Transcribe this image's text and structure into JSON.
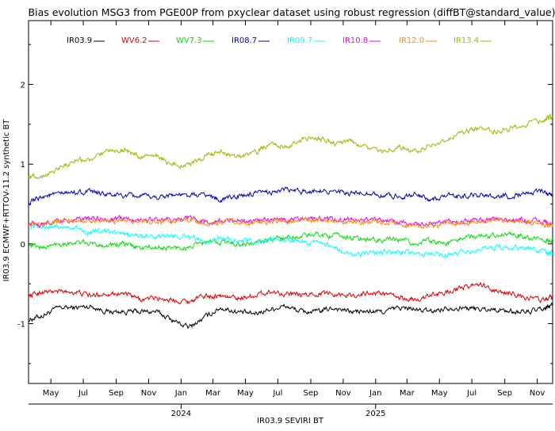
{
  "chart_data": {
    "type": "line",
    "title": "Bias evolution MSG3 from PGE00P from pxyclear dataset using robust regression (diffBT@standard_value)",
    "xlabel": "IR03.9 SEVIRI BT",
    "ylabel": "IR03.9 ECMWF+RTTOV-11.2 synthetic BT",
    "xlim": [
      "2023-03-20",
      "2025-11-30"
    ],
    "ylim": [
      -1.75,
      2.8
    ],
    "yticks": [
      -1,
      0,
      1,
      2
    ],
    "ytick_labels": [
      "-1",
      "0",
      "1",
      "2"
    ],
    "month_ticks": [
      {
        "date": "2023-05-01",
        "label": "May"
      },
      {
        "date": "2023-07-01",
        "label": "Jul"
      },
      {
        "date": "2023-09-01",
        "label": "Sep"
      },
      {
        "date": "2023-11-01",
        "label": "Nov"
      },
      {
        "date": "2024-01-01",
        "label": "Jan"
      },
      {
        "date": "2024-03-01",
        "label": "Mar"
      },
      {
        "date": "2024-05-01",
        "label": "May"
      },
      {
        "date": "2024-07-01",
        "label": "Jul"
      },
      {
        "date": "2024-09-01",
        "label": "Sep"
      },
      {
        "date": "2024-11-01",
        "label": "Nov"
      },
      {
        "date": "2025-01-01",
        "label": "Jan"
      },
      {
        "date": "2025-03-01",
        "label": "Mar"
      },
      {
        "date": "2025-05-01",
        "label": "May"
      },
      {
        "date": "2025-07-01",
        "label": "Jul"
      },
      {
        "date": "2025-09-01",
        "label": "Sep"
      },
      {
        "date": "2025-11-01",
        "label": "Nov"
      }
    ],
    "year_ticks": [
      {
        "date": "2024-01-01",
        "label": "2024"
      },
      {
        "date": "2025-01-01",
        "label": "2025"
      }
    ],
    "grid": false,
    "legend": "top-left",
    "x": [
      "2023-03-20",
      "2023-04-15",
      "2023-05-15",
      "2023-06-15",
      "2023-07-15",
      "2023-08-15",
      "2023-09-15",
      "2023-10-15",
      "2023-11-15",
      "2023-12-15",
      "2024-01-15",
      "2024-02-15",
      "2024-03-15",
      "2024-04-15",
      "2024-05-15",
      "2024-06-15",
      "2024-07-15",
      "2024-08-15",
      "2024-09-15",
      "2024-10-15",
      "2024-11-15",
      "2024-12-15",
      "2025-01-15",
      "2025-02-15",
      "2025-03-15",
      "2025-04-15",
      "2025-05-15",
      "2025-06-15",
      "2025-07-15",
      "2025-08-15",
      "2025-09-15",
      "2025-10-15",
      "2025-11-15",
      "2025-11-30"
    ],
    "series": [
      {
        "name": "IR03.9",
        "color": "#000000",
        "values": [
          -0.95,
          -0.9,
          -0.8,
          -0.8,
          -0.78,
          -0.85,
          -0.85,
          -0.85,
          -0.85,
          -0.95,
          -1.05,
          -0.92,
          -0.8,
          -0.85,
          -0.88,
          -0.82,
          -0.78,
          -0.85,
          -0.85,
          -0.8,
          -0.85,
          -0.85,
          -0.85,
          -0.8,
          -0.82,
          -0.85,
          -0.8,
          -0.8,
          -0.82,
          -0.82,
          -0.85,
          -0.85,
          -0.82,
          -0.75
        ]
      },
      {
        "name": "WV6.2",
        "color": "#dd0000",
        "values": [
          -0.65,
          -0.6,
          -0.6,
          -0.6,
          -0.65,
          -0.62,
          -0.62,
          -0.7,
          -0.68,
          -0.7,
          -0.72,
          -0.65,
          -0.65,
          -0.68,
          -0.65,
          -0.6,
          -0.62,
          -0.65,
          -0.62,
          -0.62,
          -0.65,
          -0.62,
          -0.62,
          -0.68,
          -0.7,
          -0.65,
          -0.6,
          -0.55,
          -0.5,
          -0.6,
          -0.62,
          -0.68,
          -0.7,
          -0.68
        ]
      },
      {
        "name": "WV7.3",
        "color": "#00dd00",
        "values": [
          0.0,
          -0.05,
          0.0,
          0.02,
          0.0,
          -0.02,
          0.0,
          -0.05,
          -0.05,
          -0.05,
          -0.05,
          0.02,
          0.03,
          0.0,
          0.0,
          0.05,
          0.08,
          0.1,
          0.12,
          0.1,
          0.08,
          0.05,
          0.05,
          0.05,
          0.0,
          0.05,
          0.0,
          0.08,
          0.1,
          0.12,
          0.12,
          0.08,
          0.05,
          0.05
        ]
      },
      {
        "name": "IR08.7",
        "color": "#0000bb",
        "values": [
          0.5,
          0.6,
          0.62,
          0.65,
          0.65,
          0.62,
          0.6,
          0.6,
          0.58,
          0.62,
          0.6,
          0.62,
          0.55,
          0.6,
          0.62,
          0.65,
          0.68,
          0.65,
          0.68,
          0.65,
          0.62,
          0.65,
          0.6,
          0.6,
          0.62,
          0.55,
          0.6,
          0.6,
          0.62,
          0.6,
          0.6,
          0.65,
          0.65,
          0.62
        ]
      },
      {
        "name": "IR09.7",
        "color": "#00ffff",
        "values": [
          0.2,
          0.2,
          0.22,
          0.2,
          0.15,
          0.15,
          0.12,
          0.1,
          0.08,
          0.1,
          0.1,
          0.02,
          0.08,
          0.05,
          0.02,
          0.05,
          0.05,
          0.02,
          0.0,
          -0.05,
          -0.15,
          -0.12,
          -0.1,
          -0.1,
          -0.12,
          -0.12,
          -0.15,
          -0.1,
          -0.08,
          -0.05,
          -0.05,
          -0.05,
          -0.1,
          -0.12
        ]
      },
      {
        "name": "IR10.8",
        "color": "#ee00ee",
        "values": [
          0.25,
          0.25,
          0.28,
          0.3,
          0.32,
          0.3,
          0.32,
          0.3,
          0.3,
          0.3,
          0.32,
          0.28,
          0.28,
          0.3,
          0.28,
          0.3,
          0.3,
          0.32,
          0.32,
          0.3,
          0.3,
          0.3,
          0.3,
          0.28,
          0.25,
          0.25,
          0.28,
          0.28,
          0.3,
          0.32,
          0.3,
          0.3,
          0.28,
          0.25
        ]
      },
      {
        "name": "IR12.0",
        "color": "#ff8800",
        "values": [
          0.25,
          0.25,
          0.28,
          0.3,
          0.3,
          0.28,
          0.3,
          0.28,
          0.28,
          0.28,
          0.3,
          0.25,
          0.28,
          0.28,
          0.25,
          0.28,
          0.28,
          0.3,
          0.3,
          0.28,
          0.28,
          0.28,
          0.28,
          0.25,
          0.22,
          0.22,
          0.25,
          0.25,
          0.28,
          0.3,
          0.28,
          0.28,
          0.25,
          0.22
        ]
      },
      {
        "name": "IR13.4",
        "color": "#99bb00",
        "values": [
          0.85,
          0.85,
          0.95,
          1.05,
          1.05,
          1.15,
          1.18,
          1.1,
          1.1,
          1.0,
          0.98,
          1.1,
          1.15,
          1.1,
          1.12,
          1.25,
          1.2,
          1.3,
          1.32,
          1.25,
          1.3,
          1.2,
          1.15,
          1.22,
          1.15,
          1.25,
          1.3,
          1.4,
          1.45,
          1.4,
          1.45,
          1.5,
          1.55,
          1.6
        ]
      }
    ]
  }
}
